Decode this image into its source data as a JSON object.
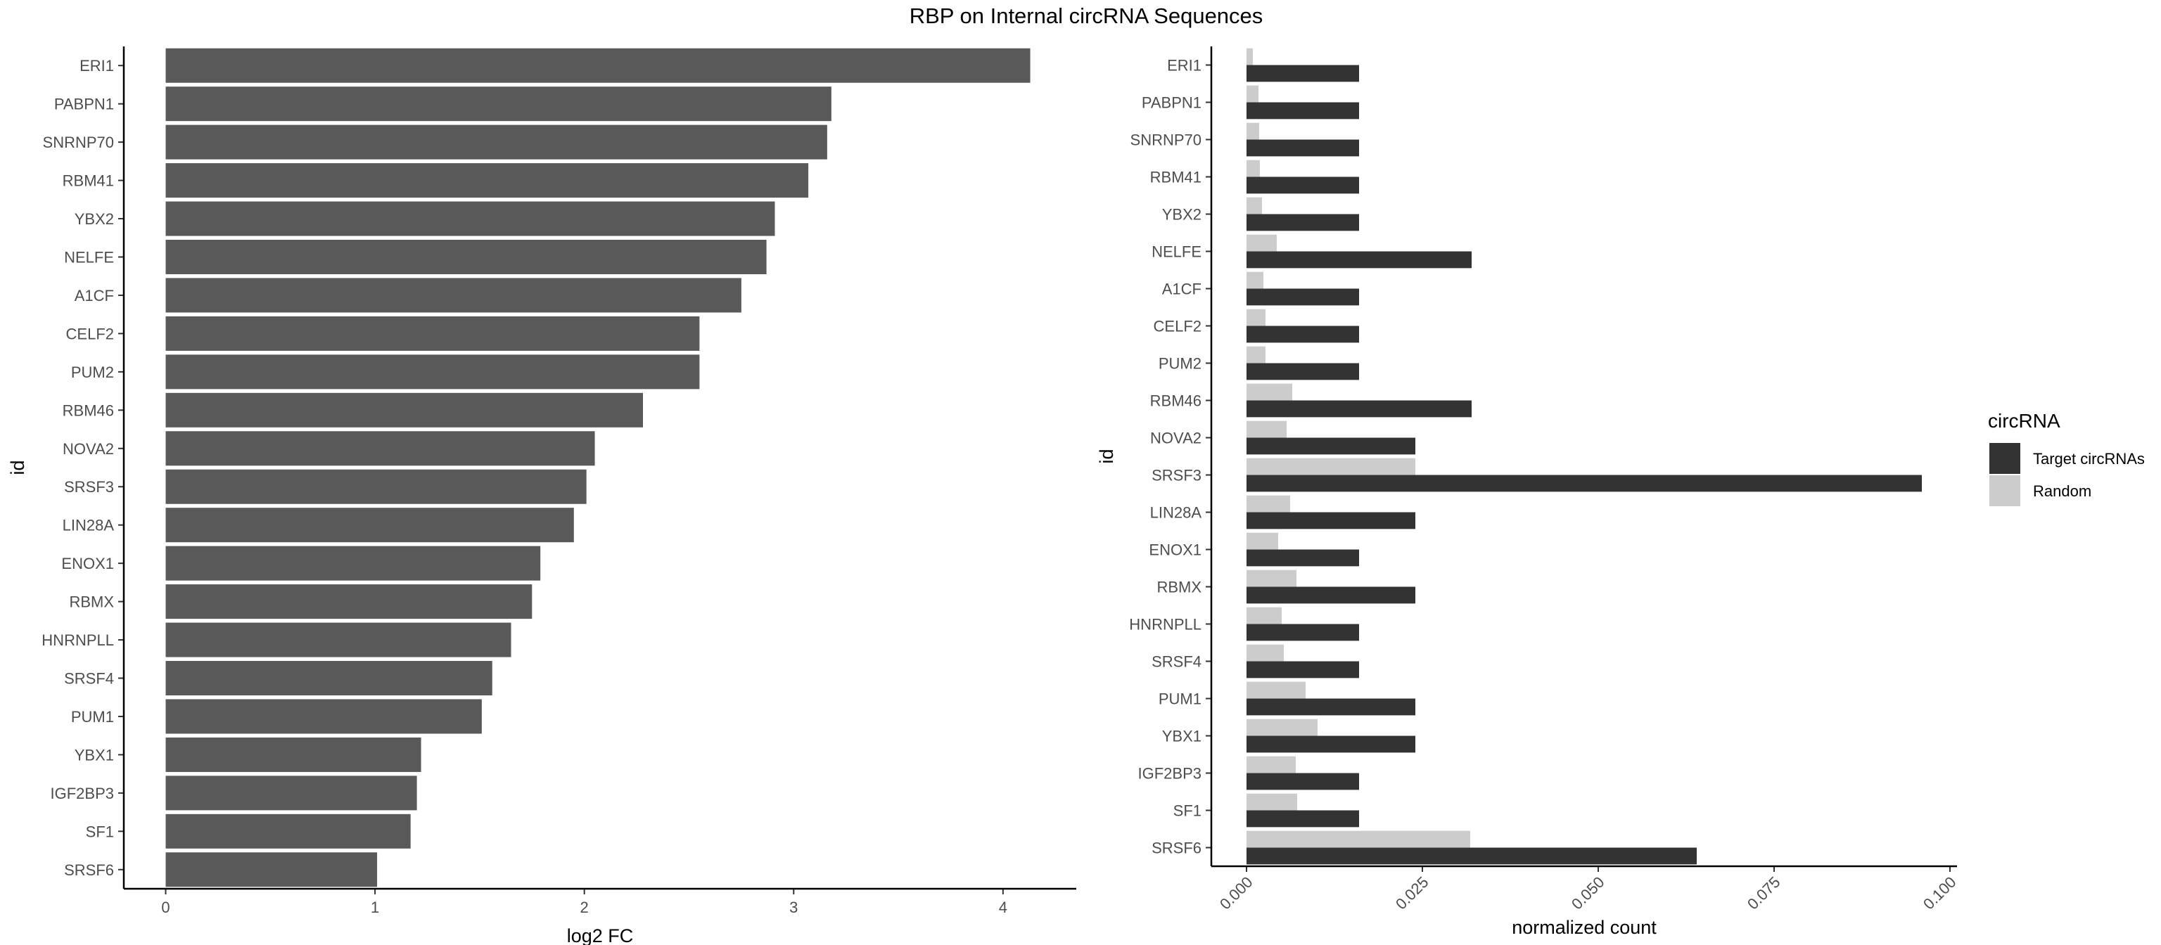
{
  "title": "RBP on Internal circRNA Sequences",
  "chart_data": [
    {
      "type": "bar",
      "orientation": "horizontal",
      "categories": [
        "ERI1",
        "PABPN1",
        "SNRNP70",
        "RBM41",
        "YBX2",
        "NELFE",
        "A1CF",
        "CELF2",
        "PUM2",
        "RBM46",
        "NOVA2",
        "SRSF3",
        "LIN28A",
        "ENOX1",
        "RBMX",
        "HNRNPLL",
        "SRSF4",
        "PUM1",
        "YBX1",
        "IGF2BP3",
        "SF1",
        "SRSF6"
      ],
      "values": [
        4.13,
        3.18,
        3.16,
        3.07,
        2.91,
        2.87,
        2.75,
        2.55,
        2.55,
        2.28,
        2.05,
        2.01,
        1.95,
        1.79,
        1.75,
        1.65,
        1.56,
        1.51,
        1.22,
        1.2,
        1.17,
        1.01
      ],
      "xlabel": "log2 FC",
      "ylabel": "id",
      "xlim": [
        -0.2,
        4.35
      ],
      "xticks": [
        "0",
        "1",
        "2",
        "3",
        "4"
      ],
      "bar_color": "#595959",
      "grid": false
    },
    {
      "type": "bar",
      "orientation": "horizontal",
      "position": "dodge",
      "categories": [
        "ERI1",
        "PABPN1",
        "SNRNP70",
        "RBM41",
        "YBX2",
        "NELFE",
        "A1CF",
        "CELF2",
        "PUM2",
        "RBM46",
        "NOVA2",
        "SRSF3",
        "LIN28A",
        "ENOX1",
        "RBMX",
        "HNRNPLL",
        "SRSF4",
        "PUM1",
        "YBX1",
        "IGF2BP3",
        "SF1",
        "SRSF6"
      ],
      "series": [
        {
          "name": "Target circRNAs",
          "color": "#333333",
          "values": [
            0.016,
            0.016,
            0.016,
            0.016,
            0.016,
            0.032,
            0.016,
            0.016,
            0.016,
            0.032,
            0.024,
            0.096,
            0.024,
            0.016,
            0.024,
            0.016,
            0.016,
            0.024,
            0.024,
            0.016,
            0.016,
            0.064
          ]
        },
        {
          "name": "Random",
          "color": "#cccccc",
          "values": [
            0.0009,
            0.0017,
            0.0018,
            0.0019,
            0.0022,
            0.0043,
            0.0024,
            0.0027,
            0.0027,
            0.0065,
            0.0057,
            0.024,
            0.0062,
            0.0045,
            0.0071,
            0.005,
            0.0053,
            0.0084,
            0.0101,
            0.007,
            0.0072,
            0.0318
          ]
        }
      ],
      "xlabel": "normalized count",
      "ylabel": "id",
      "xlim": [
        -0.005,
        0.101
      ],
      "xticks": [
        "0.000",
        "0.025",
        "0.050",
        "0.075",
        "0.100"
      ],
      "legend": {
        "title": "circRNA",
        "placement": "right"
      },
      "grid": false
    }
  ]
}
